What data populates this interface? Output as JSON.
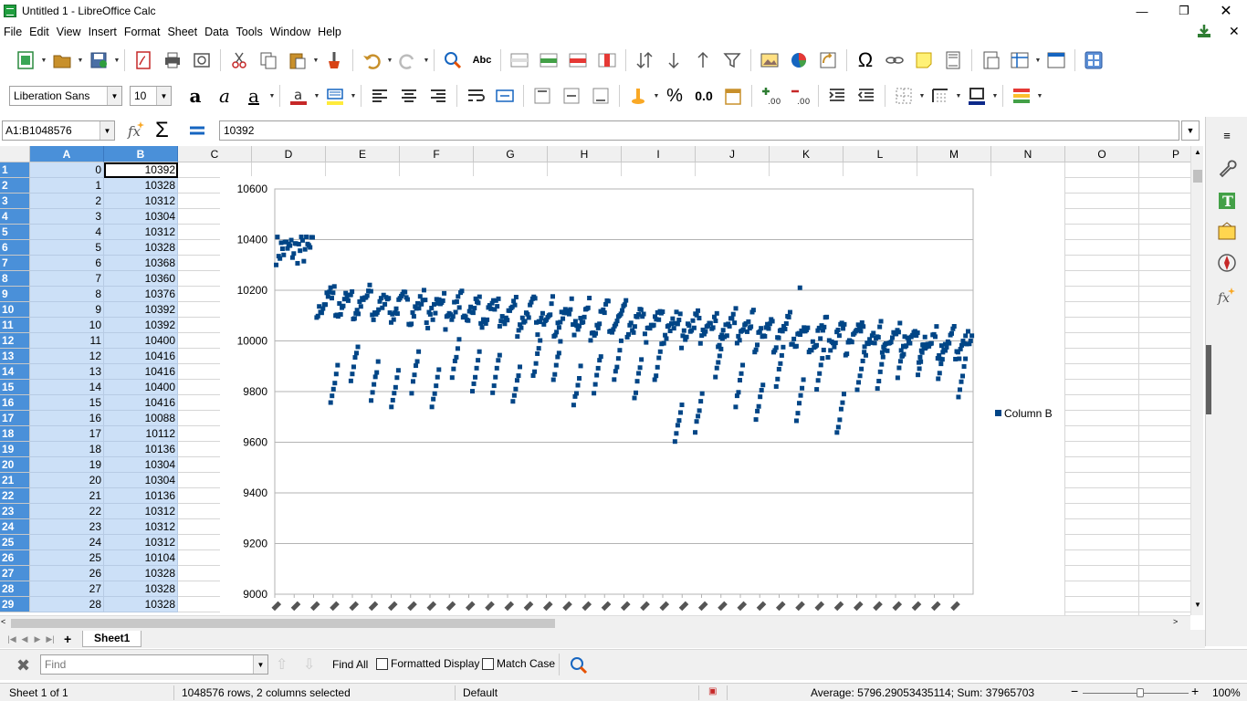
{
  "window": {
    "title": "Untitled 1 - LibreOffice Calc"
  },
  "menu": [
    "File",
    "Edit",
    "View",
    "Insert",
    "Format",
    "Sheet",
    "Data",
    "Tools",
    "Window",
    "Help"
  ],
  "format_toolbar": {
    "font_name": "Liberation Sans",
    "font_size": "10",
    "number_format_label": "0.0"
  },
  "formula_bar": {
    "name_box": "A1:B1048576",
    "content": "10392"
  },
  "columns": [
    "A",
    "B",
    "C",
    "D",
    "E",
    "F",
    "G",
    "H",
    "I",
    "J",
    "K",
    "L",
    "M",
    "N",
    "O",
    "P"
  ],
  "rows": {
    "numbers": [
      "1",
      "2",
      "3",
      "4",
      "5",
      "6",
      "7",
      "8",
      "9",
      "10",
      "11",
      "12",
      "13",
      "14",
      "15",
      "16",
      "17",
      "18",
      "19",
      "20",
      "21",
      "22",
      "23",
      "24",
      "25",
      "26",
      "27",
      "28",
      "29"
    ],
    "col_a": [
      "0",
      "1",
      "2",
      "3",
      "4",
      "5",
      "6",
      "7",
      "8",
      "9",
      "10",
      "11",
      "12",
      "13",
      "14",
      "15",
      "16",
      "17",
      "18",
      "19",
      "20",
      "21",
      "22",
      "23",
      "24",
      "25",
      "26",
      "27",
      "28"
    ],
    "col_b": [
      "10392",
      "10328",
      "10312",
      "10304",
      "10312",
      "10328",
      "10368",
      "10360",
      "10376",
      "10392",
      "10392",
      "10400",
      "10416",
      "10416",
      "10400",
      "10416",
      "10088",
      "10112",
      "10136",
      "10304",
      "10304",
      "10136",
      "10312",
      "10312",
      "10312",
      "10104",
      "10328",
      "10328",
      "10328"
    ]
  },
  "chart_data": {
    "type": "scatter",
    "title": "",
    "xlabel": "",
    "ylabel": "",
    "ylim": [
      9000,
      10600
    ],
    "y_ticks": [
      "10600",
      "10400",
      "10200",
      "10000",
      "9800",
      "9600",
      "9400",
      "9200",
      "9000"
    ],
    "legend": {
      "entry": "Column B",
      "position": "right",
      "color": "#004586"
    },
    "series": [
      {
        "name": "Column B",
        "x_range": [
          0,
          1048575
        ],
        "values_first": [
          10392,
          10328,
          10312,
          10304,
          10312,
          10328,
          10368,
          10360,
          10376,
          10392,
          10392,
          10400,
          10416,
          10416,
          10400,
          10416,
          10088,
          10112,
          10136,
          10304,
          10304,
          10136,
          10312,
          10312,
          10312,
          10104,
          10328,
          10328,
          10328
        ]
      }
    ]
  },
  "sheet_tabs": {
    "active": "Sheet1",
    "add": "+"
  },
  "find_bar": {
    "placeholder": "Find",
    "find_all": "Find All",
    "formatted_display": "Formatted Display",
    "match_case": "Match Case"
  },
  "status": {
    "sheet": "Sheet 1 of 1",
    "selection": "1048576 rows, 2 columns selected",
    "page_style": "Default",
    "summary": "Average: 5796.29053435114; Sum: 37965703",
    "zoom": "100%"
  },
  "colors": {
    "selection_header": "#4a90d9",
    "selection_fill": "#cce0f7",
    "series": "#004586"
  }
}
